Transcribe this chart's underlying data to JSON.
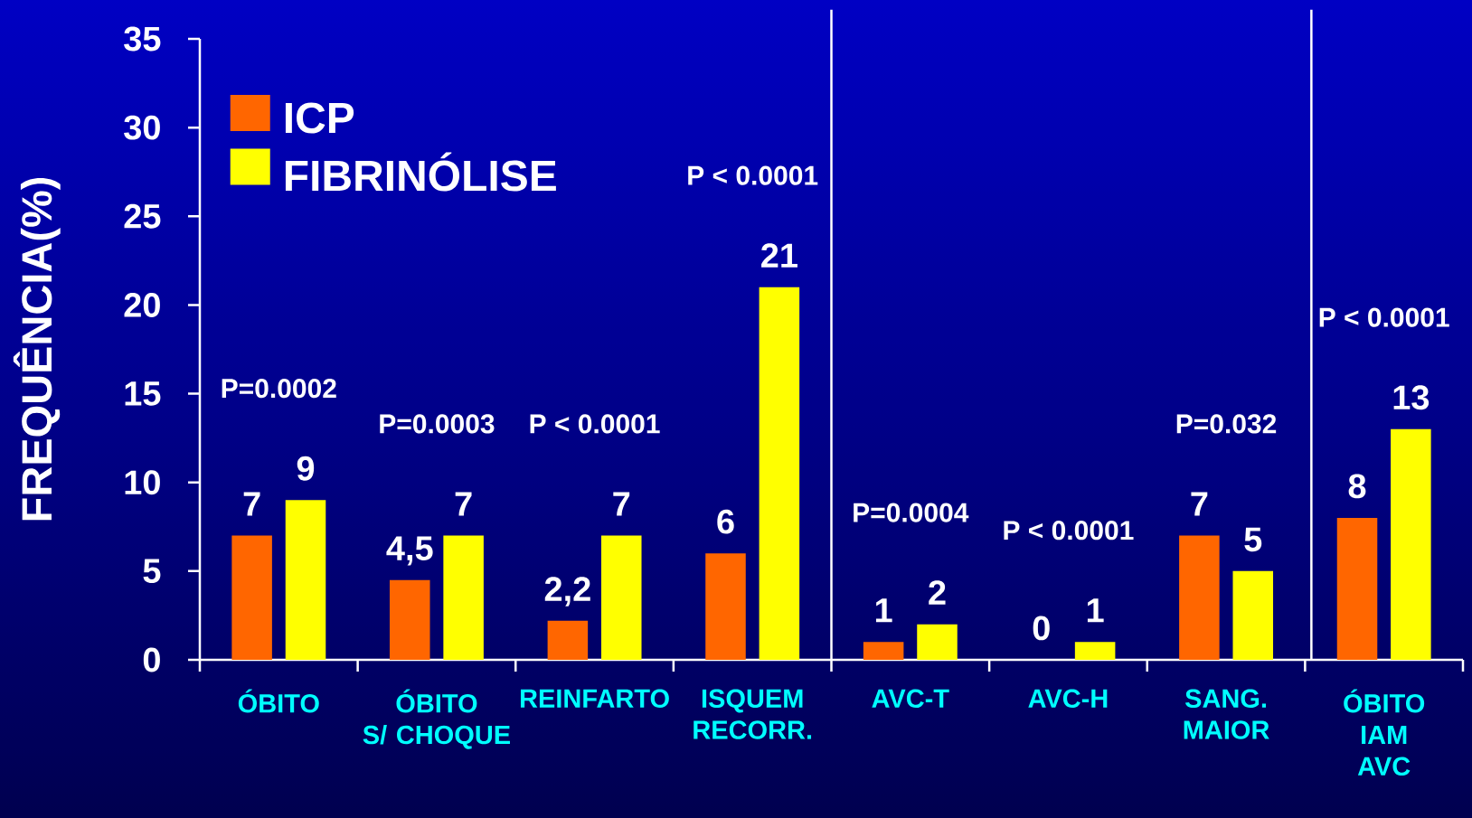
{
  "chart_data": {
    "type": "bar",
    "ylabel": "FREQUÊNCIA(%)",
    "categories": [
      "ÓBITO",
      "ÓBITO\nS/ CHOQUE",
      "REINFARTO",
      "ISQUEM\nRECORR.",
      "AVC-T",
      "AVC-H",
      "SANG.\nMAIOR",
      "ÓBITO\nIAM\nAVC"
    ],
    "series": [
      {
        "name": "ICP",
        "color": "#ff6600",
        "values": [
          7,
          4.5,
          2.2,
          6,
          1,
          0,
          7,
          8
        ],
        "value_labels": [
          "7",
          "4,5",
          "2,2",
          "6",
          "1",
          "0",
          "7",
          "8"
        ]
      },
      {
        "name": "FIBRINÓLISE",
        "color": "#ffff00",
        "values": [
          9,
          7,
          7,
          21,
          2,
          1,
          5,
          13
        ],
        "value_labels": [
          "9",
          "7",
          "7",
          "21",
          "2",
          "1",
          "5",
          "13"
        ]
      }
    ],
    "ylim": [
      0,
      35
    ],
    "yticks": [
      0,
      5,
      10,
      15,
      20,
      25,
      30,
      35
    ],
    "legend": "top left",
    "annotations": [
      "P=0.0002",
      "P=0.0003",
      "P < 0.0001",
      "P < 0.0001",
      "P=0.0004",
      "P < 0.0001",
      "P=0.032",
      "P < 0.0001"
    ]
  }
}
